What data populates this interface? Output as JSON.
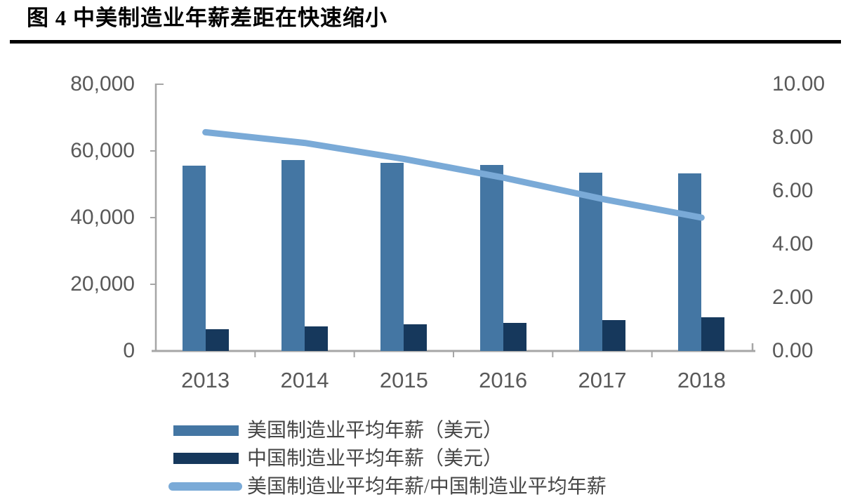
{
  "figure": {
    "title": "图 4 中美制造业年薪差距在快速缩小"
  },
  "chart_data": {
    "type": "bar",
    "subtype": "grouped-bars-with-line-overlay",
    "categories": [
      "2013",
      "2014",
      "2015",
      "2016",
      "2017",
      "2018"
    ],
    "series": [
      {
        "name": "美国制造业平均年薪（美元）",
        "type": "bar",
        "axis": "left",
        "color": "#4476A3",
        "values": [
          55600,
          57300,
          56400,
          55700,
          53500,
          53200
        ]
      },
      {
        "name": "中国制造业平均年薪（美元）",
        "type": "bar",
        "axis": "left",
        "color": "#16385C",
        "values": [
          6500,
          7300,
          7900,
          8500,
          9200,
          10200
        ]
      },
      {
        "name": "美国制造业平均年薪/中国制造业平均年薪",
        "type": "line",
        "axis": "right",
        "color": "#7AAAD7",
        "values": [
          8.2,
          7.8,
          7.2,
          6.5,
          5.7,
          5.0
        ]
      }
    ],
    "left_axis": {
      "min": 0,
      "max": 80000,
      "tick_interval": 20000,
      "tick_labels": [
        "80,000",
        "60,000",
        "40,000",
        "20,000",
        "0"
      ]
    },
    "right_axis": {
      "min": 0,
      "max": 10,
      "tick_interval": 2,
      "tick_labels": [
        "10.00",
        "8.00",
        "6.00",
        "4.00",
        "2.00",
        "0.00"
      ]
    },
    "grid": false,
    "legend_position": "bottom-left"
  },
  "colors": {
    "us_bar": "#4476A3",
    "china_bar": "#16385C",
    "ratio_line": "#7AAAD7",
    "axis_line": "#A6A6A6",
    "axis_text": "#595959",
    "title_text": "#000000",
    "legend_text": "#464646"
  }
}
